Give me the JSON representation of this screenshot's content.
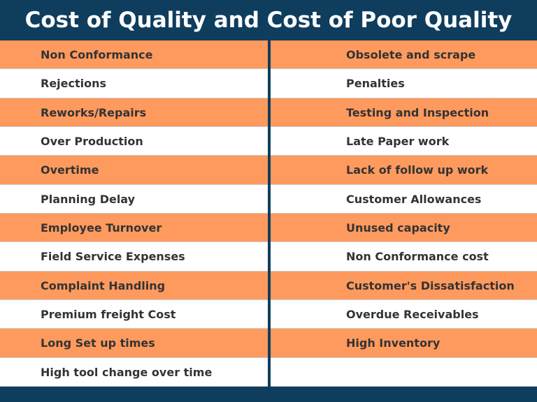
{
  "header": {
    "title": "Cost of Quality and Cost of Poor Quality"
  },
  "table": {
    "left": [
      "Non Conformance",
      "Rejections",
      "Reworks/Repairs",
      "Over Production",
      "Overtime",
      "Planning Delay",
      "Employee Turnover",
      "Field Service Expenses",
      "Complaint Handling",
      "Premium freight Cost",
      "Long Set up times",
      "High tool change over time"
    ],
    "right": [
      "Obsolete and scrape",
      "Penalties",
      "Testing and Inspection",
      "Late Paper work",
      "Lack of follow up work",
      "Customer Allowances",
      "Unused capacity",
      "Non Conformance cost",
      "Customer's Dissatisfaction",
      "Overdue Receivables",
      "High Inventory"
    ]
  }
}
